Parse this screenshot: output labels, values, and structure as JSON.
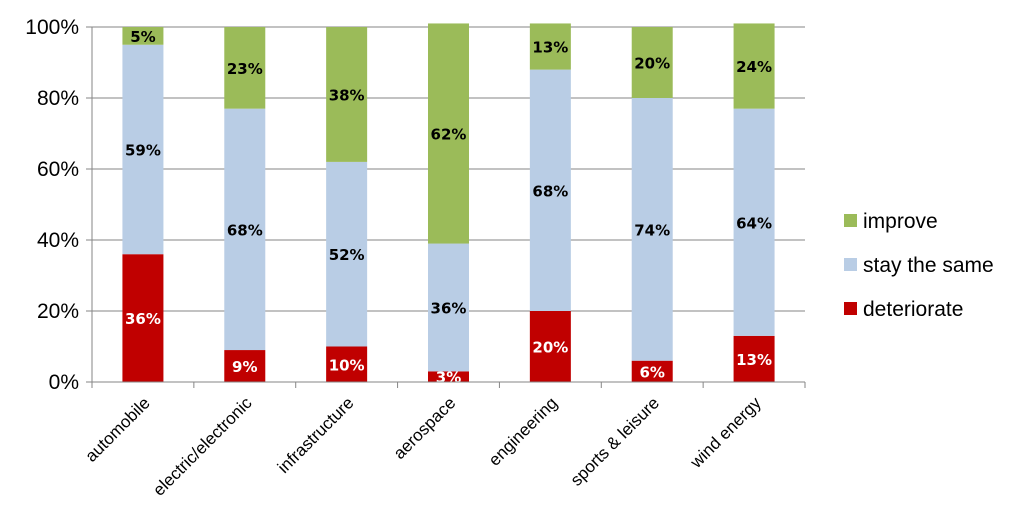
{
  "chart_data": {
    "type": "bar",
    "stacked": true,
    "percent": true,
    "categories": [
      "automobile",
      "electric/electronic",
      "infrastructure",
      "aerospace",
      "engineering",
      "sports & leisure",
      "wind energy"
    ],
    "series": [
      {
        "name": "deteriorate",
        "color": "#c00000",
        "label_color": "#ffffff",
        "values": [
          36,
          9,
          10,
          3,
          20,
          6,
          13
        ]
      },
      {
        "name": "stay the same",
        "color": "#b9cde5",
        "label_color": "#000000",
        "values": [
          59,
          68,
          52,
          36,
          68,
          74,
          64
        ]
      },
      {
        "name": "improve",
        "color": "#9bbb59",
        "label_color": "#000000",
        "values": [
          5,
          23,
          38,
          62,
          13,
          20,
          24
        ]
      }
    ],
    "data_labels": [
      [
        "36%",
        "9%",
        "10%",
        "3%",
        "20%",
        "6%",
        "13%"
      ],
      [
        "59%",
        "68%",
        "52%",
        "36%",
        "68%",
        "74%",
        "64%"
      ],
      [
        "5%",
        "23%",
        "38%",
        "62%",
        "13%",
        "20%",
        "24%"
      ]
    ],
    "y_ticks": [
      "0%",
      "20%",
      "40%",
      "60%",
      "80%",
      "100%"
    ],
    "ylim": [
      0,
      100
    ],
    "grid": true,
    "legend": {
      "placement": "right",
      "order": [
        "improve",
        "stay the same",
        "deteriorate"
      ]
    }
  }
}
